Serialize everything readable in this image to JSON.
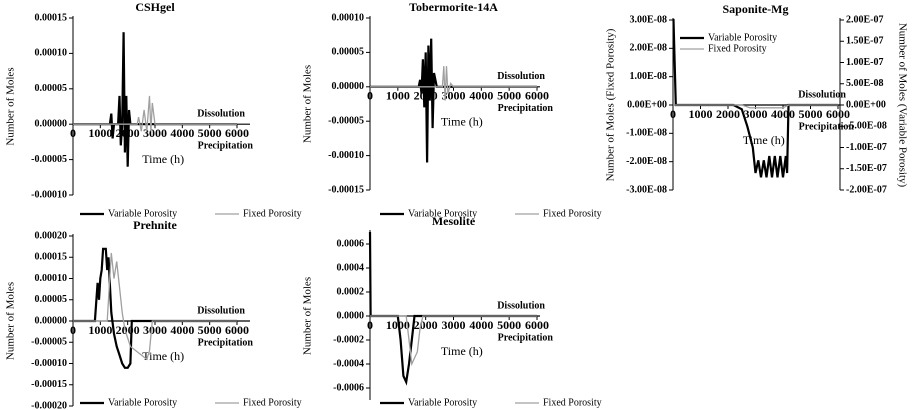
{
  "chart_data": [
    {
      "type": "line",
      "title": "CSHgel",
      "xlabel": "Time (h)",
      "ylabel": "Number of Moles",
      "annotations": [
        "Dissolution",
        "Precipitation"
      ],
      "legend": "bottom",
      "xlim": [
        0,
        6000
      ],
      "xticks": [
        0,
        1000,
        2000,
        3000,
        4000,
        5000,
        6000
      ],
      "ylim": [
        -0.0001,
        0.00015
      ],
      "yticks": [
        {
          "value": 0.00015,
          "label": "0.00015"
        },
        {
          "value": 0.0001,
          "label": "0.00010"
        },
        {
          "value": 5e-05,
          "label": "0.00005"
        },
        {
          "value": 0,
          "label": "0.00000"
        },
        {
          "value": -5e-05,
          "label": "-0.00005"
        },
        {
          "value": -0.0001,
          "label": "-0.00010"
        }
      ],
      "series": [
        {
          "name": "Variable Porosity",
          "color": "#000000",
          "x": [
            0,
            1350,
            1400,
            1450,
            1500,
            1650,
            1700,
            1750,
            1800,
            1850,
            1900,
            1950,
            2000,
            2050,
            2100,
            6000
          ],
          "values": [
            0,
            0,
            1.5e-05,
            -2e-05,
            0,
            0,
            4e-05,
            -3e-05,
            0,
            0.00013,
            -4e-05,
            4e-05,
            -6e-05,
            2e-05,
            0,
            0
          ]
        },
        {
          "name": "Fixed Porosity",
          "color": "#a0a0a0",
          "x": [
            0,
            2350,
            2400,
            2500,
            2600,
            2700,
            2800,
            2850,
            2900,
            3000,
            6000
          ],
          "values": [
            0,
            0,
            1e-05,
            -1e-05,
            2e-05,
            -1e-05,
            4e-05,
            -1e-05,
            3e-05,
            0,
            0
          ]
        }
      ]
    },
    {
      "type": "line",
      "title": "Tobermorite-14A",
      "xlabel": "Time (h)",
      "ylabel": "Number of Moles",
      "annotations": [
        "Dissolution",
        "Precipitation"
      ],
      "legend": "bottom",
      "xlim": [
        0,
        6000
      ],
      "xticks": [
        0,
        1000,
        2000,
        3000,
        4000,
        5000,
        6000
      ],
      "ylim": [
        -0.00015,
        0.0001
      ],
      "yticks": [
        {
          "value": 0.0001,
          "label": "0.00010"
        },
        {
          "value": 5e-05,
          "label": "0.00005"
        },
        {
          "value": 0,
          "label": "0.00000"
        },
        {
          "value": -5e-05,
          "label": "-0.00005"
        },
        {
          "value": -0.0001,
          "label": "-0.00010"
        },
        {
          "value": -0.00015,
          "label": "-0.00015"
        }
      ],
      "series": [
        {
          "name": "Variable Porosity",
          "color": "#000000",
          "x": [
            0,
            1750,
            1800,
            1850,
            1900,
            1950,
            2000,
            2050,
            2100,
            2150,
            2200,
            2250,
            2300,
            2400,
            6000
          ],
          "values": [
            0,
            0,
            1e-05,
            -1e-05,
            4e-05,
            -3e-05,
            5e-05,
            -0.00011,
            6e-05,
            -2e-05,
            7e-05,
            -6e-05,
            2e-05,
            0,
            0
          ]
        },
        {
          "name": "Fixed Porosity",
          "color": "#a0a0a0",
          "x": [
            0,
            2600,
            2650,
            2700,
            2750,
            2800,
            2900,
            3000,
            6000
          ],
          "values": [
            0,
            0,
            3e-05,
            -2e-05,
            3e-05,
            -1e-05,
            5e-06,
            0,
            0
          ]
        }
      ]
    },
    {
      "type": "line",
      "title": "Saponite-Mg",
      "xlabel": "Time (h)",
      "ylabel": "Number of Moles (Fixed Porosity)",
      "y2label": "Number of Moles (Variable Porosity)",
      "annotations": [
        "Dissolution",
        "Precipitation"
      ],
      "legend": "upper left",
      "xlim": [
        0,
        6000
      ],
      "xticks": [
        0,
        1000,
        2000,
        3000,
        4000,
        5000,
        6000
      ],
      "ylim": [
        -3e-08,
        3e-08
      ],
      "yticks": [
        {
          "value": 3e-08,
          "label": "3.00E-08"
        },
        {
          "value": 2e-08,
          "label": "2.00E-08"
        },
        {
          "value": 1e-08,
          "label": "1.00E-08"
        },
        {
          "value": 0,
          "label": "0.00E+00"
        },
        {
          "value": -1e-08,
          "label": "-1.00E-08"
        },
        {
          "value": -2e-08,
          "label": "-2.00E-08"
        },
        {
          "value": -3e-08,
          "label": "-3.00E-08"
        }
      ],
      "y2lim": [
        -2e-07,
        2e-07
      ],
      "y2ticks": [
        {
          "value": 2e-07,
          "label": "2.00E-07"
        },
        {
          "value": 1.5e-07,
          "label": "1.50E-07"
        },
        {
          "value": 1e-07,
          "label": "1.00E-07"
        },
        {
          "value": 5e-08,
          "label": "5.00E-08"
        },
        {
          "value": 0,
          "label": "0.00E+00"
        },
        {
          "value": -5e-08,
          "label": "-5.00E-08"
        },
        {
          "value": -1e-07,
          "label": "-1.00E-07"
        },
        {
          "value": -1.5e-07,
          "label": "-1.50E-07"
        },
        {
          "value": -2e-07,
          "label": "-2.00E-07"
        }
      ],
      "series": [
        {
          "name": "Variable Porosity",
          "color": "#000000",
          "axis": "y2",
          "x": [
            0,
            20,
            100,
            2200,
            2500,
            2700,
            2900,
            3000,
            3100,
            3200,
            3300,
            3400,
            3500,
            3600,
            3700,
            3800,
            3900,
            4000,
            4100,
            4150,
            4200,
            6000
          ],
          "values": [
            2e-07,
            2e-07,
            0,
            0,
            -1e-08,
            -5e-08,
            -1e-07,
            -1.6e-07,
            -1.3e-07,
            -1.7e-07,
            -1.3e-07,
            -1.7e-07,
            -1.2e-07,
            -1.7e-07,
            -1.2e-07,
            -1.7e-07,
            -1.2e-07,
            -1.7e-07,
            -1.2e-07,
            -1.6e-07,
            0,
            0
          ]
        },
        {
          "name": "Fixed Porosity",
          "color": "#a0a0a0",
          "x": [
            0,
            2500,
            2800,
            3500,
            4000,
            4200,
            6000
          ],
          "values": [
            0,
            0,
            -1e-09,
            -1e-09,
            -1e-09,
            0,
            0
          ]
        }
      ]
    },
    {
      "type": "line",
      "title": "Prehnite",
      "xlabel": "Time (h)",
      "ylabel": "Number of Moles",
      "annotations": [
        "Dissolution",
        "Precipitation"
      ],
      "legend": "bottom",
      "xlim": [
        0,
        6000
      ],
      "xticks": [
        0,
        1000,
        2000,
        3000,
        4000,
        5000,
        6000
      ],
      "ylim": [
        -0.0002,
        0.0002
      ],
      "yticks": [
        {
          "value": 0.0002,
          "label": "0.00020"
        },
        {
          "value": 0.00015,
          "label": "0.00015"
        },
        {
          "value": 0.0001,
          "label": "0.00010"
        },
        {
          "value": 5e-05,
          "label": "0.00005"
        },
        {
          "value": 0,
          "label": "0.00000"
        },
        {
          "value": -5e-05,
          "label": "-0.00005"
        },
        {
          "value": -0.0001,
          "label": "-0.00010"
        },
        {
          "value": -0.00015,
          "label": "-0.00015"
        },
        {
          "value": -0.0002,
          "label": "-0.00020"
        }
      ],
      "series": [
        {
          "name": "Variable Porosity",
          "color": "#000000",
          "x": [
            0,
            800,
            900,
            950,
            1000,
            1050,
            1100,
            1200,
            1250,
            1300,
            1400,
            1500,
            1600,
            1700,
            1800,
            1900,
            2000,
            2100,
            2150,
            6000
          ],
          "values": [
            0,
            0,
            9e-05,
            5e-05,
            0.0001,
            0.00012,
            0.00017,
            0.00017,
            0.00012,
            0.00015,
            2e-05,
            -3e-05,
            -6e-05,
            -8e-05,
            -0.0001,
            -0.00011,
            -0.00011,
            -0.0001,
            0,
            0
          ]
        },
        {
          "name": "Fixed Porosity",
          "color": "#a0a0a0",
          "x": [
            0,
            1250,
            1300,
            1400,
            1500,
            1600,
            1700,
            1800,
            1900,
            2000,
            2100,
            2300,
            2500,
            2700,
            2800,
            2900,
            6000
          ],
          "values": [
            0,
            0,
            5e-05,
            0.00016,
            0.0001,
            0.00014,
            8e-05,
            2e-05,
            -2e-05,
            -4e-05,
            -6e-05,
            -7e-05,
            -8e-05,
            -9e-05,
            -7e-05,
            0,
            0
          ]
        }
      ]
    },
    {
      "type": "line",
      "title": "Mesolite",
      "xlabel": "Time (h)",
      "ylabel": "Number of Moles",
      "annotations": [
        "Dissolution",
        "Precipitation"
      ],
      "legend": "bottom",
      "xlim": [
        0,
        6000
      ],
      "xticks": [
        0,
        1000,
        2000,
        3000,
        4000,
        5000,
        6000
      ],
      "ylim": [
        -0.0007,
        0.0007
      ],
      "yticks": [
        {
          "value": 0.0006,
          "label": "0.0006"
        },
        {
          "value": 0.0004,
          "label": "0.0004"
        },
        {
          "value": 0.0002,
          "label": "0.0002"
        },
        {
          "value": 0,
          "label": "0.0000"
        },
        {
          "value": -0.0002,
          "label": "-0.0002"
        },
        {
          "value": -0.0004,
          "label": "-0.0004"
        },
        {
          "value": -0.0006,
          "label": "-0.0006"
        }
      ],
      "series": [
        {
          "name": "Variable Porosity",
          "color": "#000000",
          "x": [
            0,
            20,
            1000,
            1100,
            1200,
            1300,
            1400,
            1500,
            1600,
            6000
          ],
          "values": [
            0.0007,
            0,
            0,
            -0.0002,
            -0.0005,
            -0.00055,
            -0.0004,
            -0.0002,
            0,
            0
          ]
        },
        {
          "name": "Fixed Porosity",
          "color": "#a0a0a0",
          "x": [
            0,
            1300,
            1400,
            1500,
            1600,
            1700,
            1800,
            1900,
            6000
          ],
          "values": [
            0,
            0,
            -0.0002,
            -0.0004,
            -0.00035,
            -0.0003,
            -0.0001,
            0,
            0
          ]
        }
      ]
    }
  ]
}
